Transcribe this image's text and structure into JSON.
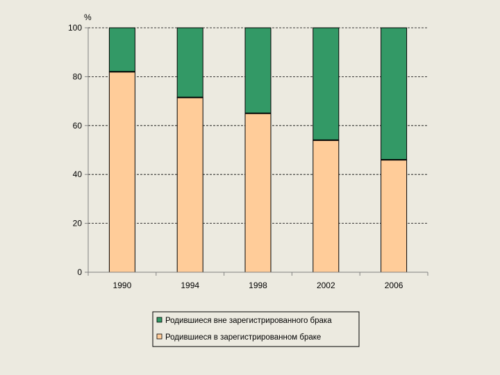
{
  "chart_data": {
    "type": "bar",
    "stacked": true,
    "title": "",
    "ylabel": "%",
    "xlabel": "",
    "categories": [
      "1990",
      "1994",
      "1998",
      "2002",
      "2006"
    ],
    "series": [
      {
        "name": "Родившиеся в зарегистрированном браке",
        "values": [
          82,
          71.5,
          65,
          54,
          46
        ],
        "color": "#FFCC99"
      },
      {
        "name": "Родившиеся вне зарегистрированного брака",
        "values": [
          18,
          28.5,
          35,
          46,
          54
        ],
        "color": "#339966"
      }
    ],
    "ylim": [
      0,
      100
    ],
    "yticks": [
      0,
      20,
      40,
      60,
      80,
      100
    ],
    "grid": "dashed horizontal",
    "legend_position": "bottom",
    "legend_order": [
      "Родившиеся вне зарегистрированного брака",
      "Родившиеся в зарегистрированном браке"
    ]
  }
}
